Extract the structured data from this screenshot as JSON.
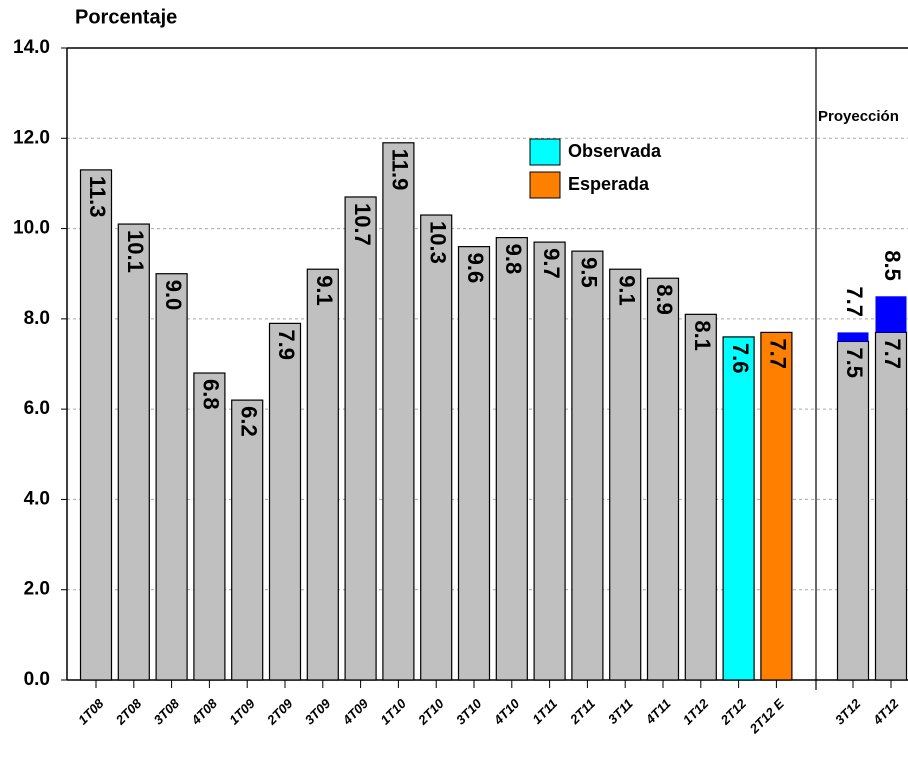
{
  "chart_data": {
    "type": "bar",
    "title": "Porcentaje",
    "categories": [
      "1T08",
      "2T08",
      "3T08",
      "4T08",
      "1T09",
      "2T09",
      "3T09",
      "4T09",
      "1T10",
      "2T10",
      "3T10",
      "4T10",
      "1T11",
      "2T11",
      "3T11",
      "4T11",
      "1T12",
      "2T12",
      "2T12 E"
    ],
    "values": [
      11.3,
      10.1,
      9,
      6.8,
      6.2,
      7.9,
      9.1,
      10.7,
      11.9,
      10.3,
      9.6,
      9.8,
      9.7,
      9.5,
      9.1,
      8.9,
      8.1,
      7.6,
      7.7
    ],
    "value_labels": [
      "11.3",
      "10.1",
      "9.0",
      "6.8",
      "6.2",
      "7.9",
      "9.1",
      "10.7",
      "11.9",
      "10.3",
      "9.6",
      "9.8",
      "9.7",
      "9.5",
      "9.1",
      "8.9",
      "8.1",
      "7.6",
      "7.7"
    ],
    "colors": [
      "#c0c0c0",
      "#c0c0c0",
      "#c0c0c0",
      "#c0c0c0",
      "#c0c0c0",
      "#c0c0c0",
      "#c0c0c0",
      "#c0c0c0",
      "#c0c0c0",
      "#c0c0c0",
      "#c0c0c0",
      "#c0c0c0",
      "#c0c0c0",
      "#c0c0c0",
      "#c0c0c0",
      "#c0c0c0",
      "#c0c0c0",
      "#00ffff",
      "#ff8000"
    ],
    "legend": [
      {
        "name": "Observada",
        "color": "#00ffff"
      },
      {
        "name": "Esperada",
        "color": "#ff8000"
      }
    ],
    "projection": {
      "label": "Proyección",
      "categories": [
        "3T12",
        "4T12"
      ],
      "low": [
        7.5,
        7.7
      ],
      "high": [
        7.7,
        8.5
      ],
      "color": "#0000ff"
    },
    "ylim": [
      0,
      14
    ],
    "yticks": [
      {
        "value": 0,
        "label": "0.0"
      },
      {
        "value": 2,
        "label": "2.0"
      },
      {
        "value": 4,
        "label": "4.0"
      },
      {
        "value": 6,
        "label": "6.0"
      },
      {
        "value": 8,
        "label": "8.0"
      },
      {
        "value": 10,
        "label": "10.0"
      },
      {
        "value": 12,
        "label": "12.0"
      },
      {
        "value": 14,
        "label": "14.0"
      }
    ],
    "grid": true
  }
}
